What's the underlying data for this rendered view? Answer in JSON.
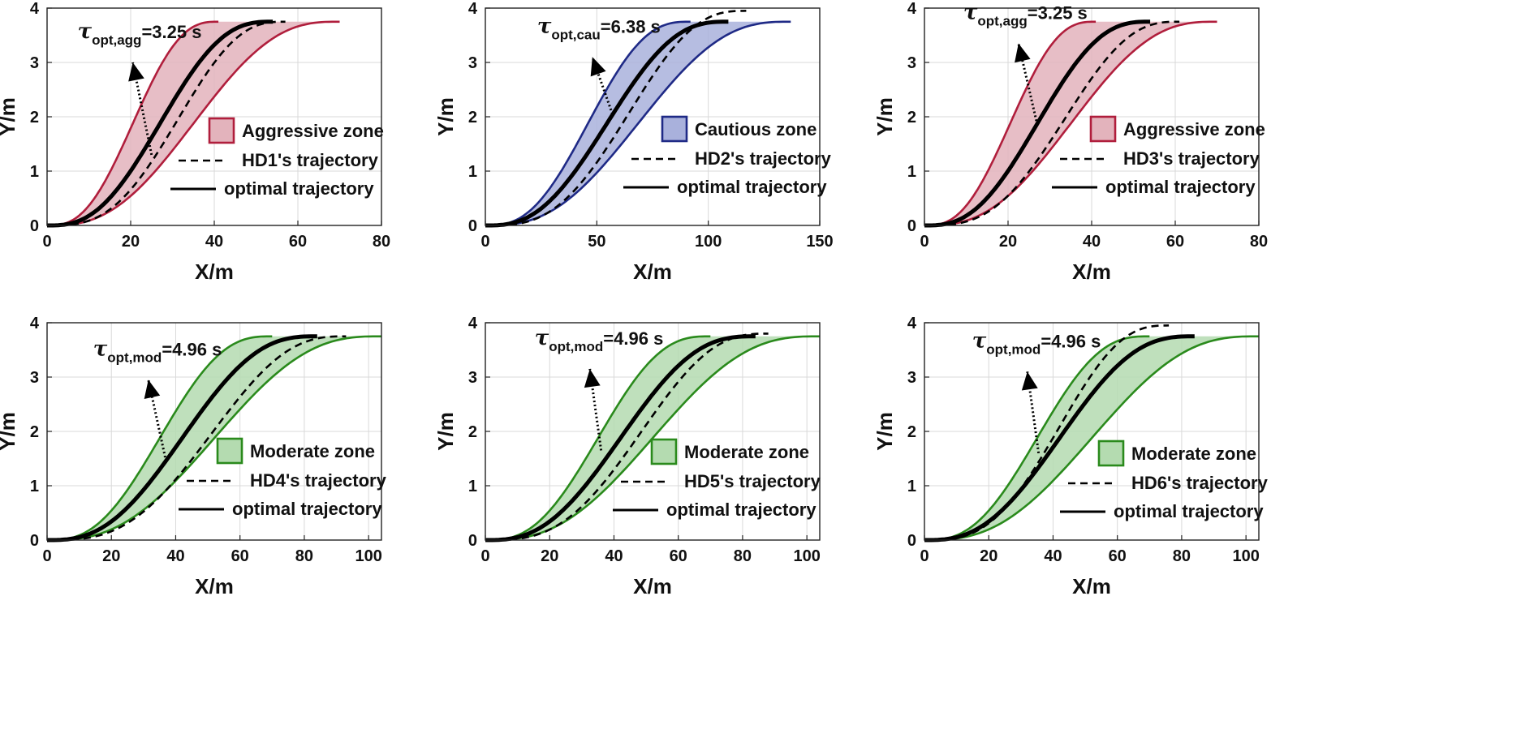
{
  "chart_data": [
    {
      "type": "line",
      "xlabel": "X/m",
      "ylabel": "Y/m",
      "xlim": [
        0,
        80
      ],
      "ylim": [
        0,
        4
      ],
      "xticks": [
        0,
        20,
        40,
        60,
        80
      ],
      "yticks": [
        0,
        1,
        2,
        3,
        4
      ],
      "grid": true,
      "zone": {
        "name": "Aggressive zone",
        "stroke": "#b01e3c",
        "fill": "#e3b3bc",
        "lower_end_x": 41,
        "upper_end_x": 70,
        "y_max": 3.75
      },
      "driver_trajectory": {
        "name": "HD1's trajectory",
        "end_x": 57,
        "y_end": 3.75
      },
      "optimal_trajectory": {
        "name": "optimal trajectory",
        "end_x": 54,
        "y_end": 3.75
      },
      "annotation": {
        "symbol": "τ",
        "subscript": "opt,agg",
        "value": "=3.25 s",
        "arrow_from": [
          25,
          1.3
        ],
        "arrow_to": [
          20.5,
          3.0
        ]
      },
      "legend_position": "center-right"
    },
    {
      "type": "line",
      "xlabel": "X/m",
      "ylabel": "Y/m",
      "xlim": [
        0,
        150
      ],
      "ylim": [
        0,
        4
      ],
      "xticks": [
        0,
        50,
        100,
        150
      ],
      "yticks": [
        0,
        1,
        2,
        3,
        4
      ],
      "grid": true,
      "zone": {
        "name": "Cautious zone",
        "stroke": "#1f2a86",
        "fill": "#a9b1dc",
        "lower_end_x": 92,
        "upper_end_x": 137,
        "y_max": 3.75
      },
      "driver_trajectory": {
        "name": "HD2's trajectory",
        "end_x": 117,
        "y_end": 3.95
      },
      "optimal_trajectory": {
        "name": "optimal trajectory",
        "end_x": 109,
        "y_end": 3.75
      },
      "annotation": {
        "symbol": "τ",
        "subscript": "opt,cau",
        "value": "=6.38 s",
        "arrow_from": [
          57,
          2.05
        ],
        "arrow_to": [
          48,
          3.1
        ]
      },
      "legend_position": "center-right"
    },
    {
      "type": "line",
      "xlabel": "X/m",
      "ylabel": "Y/m",
      "xlim": [
        0,
        80
      ],
      "ylim": [
        0,
        4
      ],
      "xticks": [
        0,
        20,
        40,
        60,
        80
      ],
      "yticks": [
        0,
        1,
        2,
        3,
        4
      ],
      "grid": true,
      "zone": {
        "name": "Aggressive zone",
        "stroke": "#b01e3c",
        "fill": "#e3b3bc",
        "lower_end_x": 41,
        "upper_end_x": 70,
        "y_max": 3.75
      },
      "driver_trajectory": {
        "name": "HD3's trajectory",
        "end_x": 61,
        "y_end": 3.75
      },
      "optimal_trajectory": {
        "name": "optimal trajectory",
        "end_x": 54,
        "y_end": 3.75
      },
      "annotation": {
        "symbol": "τ",
        "subscript": "opt,agg",
        "value": "=3.25 s",
        "arrow_from": [
          27,
          1.85
        ],
        "arrow_to": [
          22.5,
          3.35
        ]
      },
      "legend_position": "center-right"
    },
    {
      "type": "line",
      "xlabel": "X/m",
      "ylabel": "Y/m",
      "xlim": [
        0,
        104
      ],
      "ylim": [
        0,
        4
      ],
      "xticks": [
        0,
        20,
        40,
        60,
        80,
        100
      ],
      "yticks": [
        0,
        1,
        2,
        3,
        4
      ],
      "grid": true,
      "zone": {
        "name": "Moderate zone",
        "stroke": "#2a8a1c",
        "fill": "#b4dbb0",
        "lower_end_x": 70,
        "upper_end_x": 104,
        "y_max": 3.75
      },
      "driver_trajectory": {
        "name": "HD4's trajectory",
        "end_x": 93,
        "y_end": 3.75
      },
      "optimal_trajectory": {
        "name": "optimal trajectory",
        "end_x": 84,
        "y_end": 3.75
      },
      "annotation": {
        "symbol": "τ",
        "subscript": "opt,mod",
        "value": "=4.96 s",
        "arrow_from": [
          37,
          1.45
        ],
        "arrow_to": [
          31.5,
          2.95
        ]
      },
      "legend_position": "center-right"
    },
    {
      "type": "line",
      "xlabel": "X/m",
      "ylabel": "Y/m",
      "xlim": [
        0,
        104
      ],
      "ylim": [
        0,
        4
      ],
      "xticks": [
        0,
        20,
        40,
        60,
        80,
        100
      ],
      "yticks": [
        0,
        1,
        2,
        3,
        4
      ],
      "grid": true,
      "zone": {
        "name": "Moderate zone",
        "stroke": "#2a8a1c",
        "fill": "#b4dbb0",
        "lower_end_x": 70,
        "upper_end_x": 104,
        "y_max": 3.75
      },
      "driver_trajectory": {
        "name": "HD5's trajectory",
        "end_x": 88,
        "y_end": 3.8
      },
      "optimal_trajectory": {
        "name": "optimal trajectory",
        "end_x": 84,
        "y_end": 3.75
      },
      "annotation": {
        "symbol": "τ",
        "subscript": "opt,mod",
        "value": "=4.96 s",
        "arrow_from": [
          36,
          1.65
        ],
        "arrow_to": [
          32.5,
          3.15
        ]
      },
      "legend_position": "center-right"
    },
    {
      "type": "line",
      "xlabel": "X/m",
      "ylabel": "Y/m",
      "xlim": [
        0,
        104
      ],
      "ylim": [
        0,
        4
      ],
      "xticks": [
        0,
        20,
        40,
        60,
        80,
        100
      ],
      "yticks": [
        0,
        1,
        2,
        3,
        4
      ],
      "grid": true,
      "zone": {
        "name": "Moderate zone",
        "stroke": "#2a8a1c",
        "fill": "#b4dbb0",
        "lower_end_x": 70,
        "upper_end_x": 104,
        "y_max": 3.75
      },
      "driver_trajectory": {
        "name": "HD6's trajectory",
        "end_x": 76,
        "y_end": 3.95
      },
      "optimal_trajectory": {
        "name": "optimal trajectory",
        "end_x": 84,
        "y_end": 3.75
      },
      "annotation": {
        "symbol": "τ",
        "subscript": "opt,mod",
        "value": "=4.96 s",
        "arrow_from": [
          35.5,
          1.6
        ],
        "arrow_to": [
          32,
          3.1
        ]
      },
      "legend_position": "center-right"
    }
  ]
}
